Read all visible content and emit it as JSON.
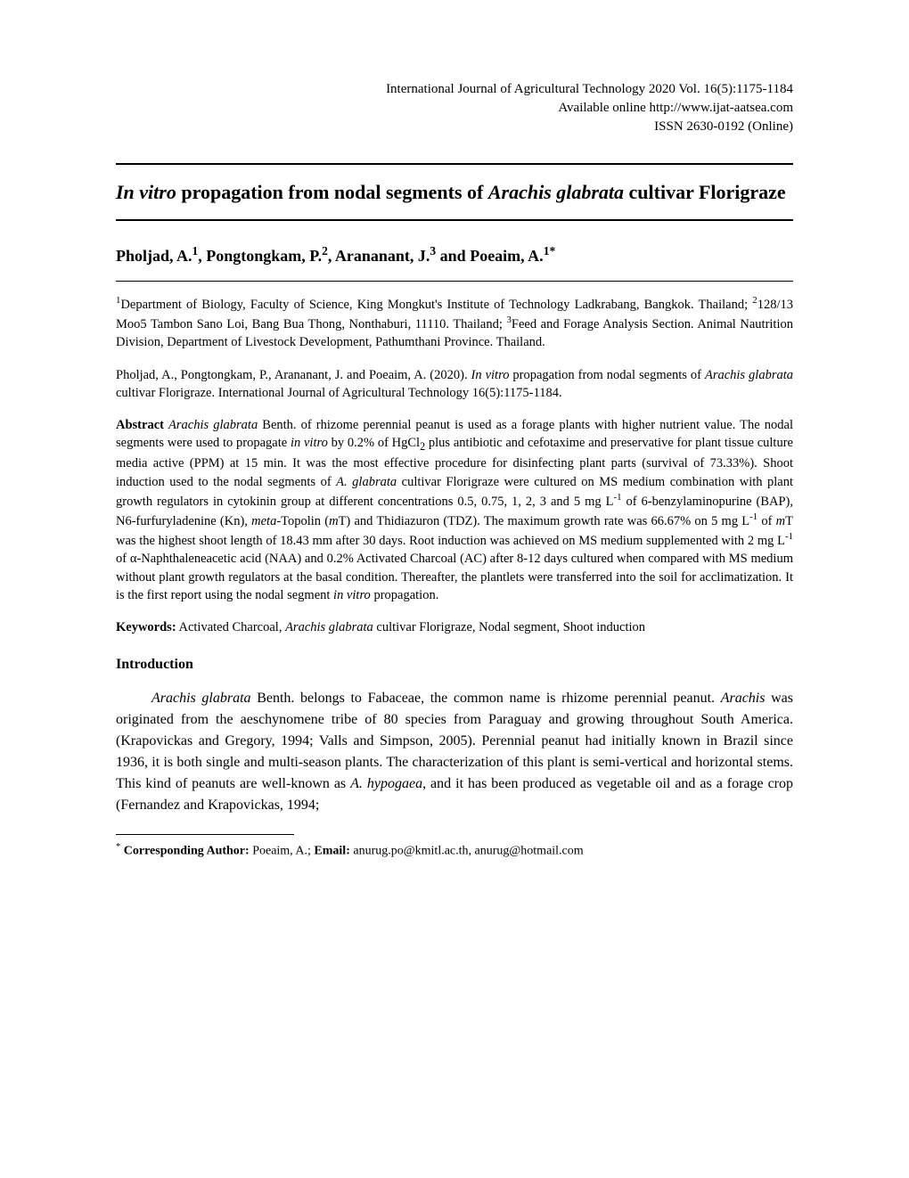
{
  "header": {
    "journal_line": "International Journal of Agricultural Technology 2020 Vol. 16(5):1175-1184",
    "url_line": "Available online http://www.ijat-aatsea.com",
    "issn_line": "ISSN 2630-0192 (Online)"
  },
  "title": {
    "italic_prefix": "In vitro",
    "mid": " propagation from nodal segments of ",
    "italic_species": "Arachis glabrata",
    "suffix": " cultivar Florigraze"
  },
  "authors": {
    "a1_name": "Pholjad, A.",
    "a1_sup": "1",
    "a2_name": ", Pongtongkam, P.",
    "a2_sup": "2",
    "a3_name": ", Arananant, J.",
    "a3_sup": "3",
    "a4_name": " and Poeaim, A.",
    "a4_sup": "1*"
  },
  "affiliations": {
    "sup1": "1",
    "aff1": "Department of Biology, Faculty of Science, King Mongkut's Institute of Technology Ladkrabang, Bangkok. Thailand; ",
    "sup2": "2",
    "aff2": "128/13 Moo5 Tambon Sano Loi, Bang Bua Thong, Nonthaburi, 11110. Thailand; ",
    "sup3": "3",
    "aff3": "Feed and Forage Analysis Section. Animal Nautrition Division, Department of Livestock Development, Pathumthani Province. Thailand."
  },
  "citation": {
    "authors": "Pholjad, A., Pongtongkam, P., Arananant, J. and Poeaim, A. (2020). ",
    "italic_invitro": "In vitro",
    "mid": " propagation from nodal segments of ",
    "italic_species": "Arachis glabrata",
    "tail": " cultivar Florigraze. International Journal of Agricultural Technology 16(5):1175-1184."
  },
  "abstract": {
    "label": "Abstract ",
    "species": "Arachis glabrata",
    "p1": " Benth. of rhizome perennial peanut is used as a forage plants with higher nutrient value. The nodal segments were used to propagate ",
    "invitro1": "in vitro",
    "p2": " by 0.2% of HgCl",
    "sub2": "2",
    "p3": " plus antibiotic and cefotaxime and preservative for plant tissue culture media active (PPM) at 15 min. It was the most effective procedure for disinfecting plant parts (survival of 73.33%). Shoot induction used to the nodal segments of ",
    "species2": "A. glabrata",
    "p4": " cultivar Florigraze were cultured on MS medium combination with plant growth regulators in cytokinin group at different concentrations 0.5, 0.75, 1, 2, 3 and 5 mg L",
    "supneg1a": "-1",
    "p5": " of 6-benzylaminopurine (BAP), N6-furfuryladenine (Kn), ",
    "meta": "meta",
    "p6": "-Topolin (",
    "mT1": "m",
    "p7": "T) and Thidiazuron (TDZ). The maximum growth rate was 66.67% on 5 mg L",
    "supneg1b": "-1",
    "p8": " of ",
    "mT2": "m",
    "p9": "T was the highest shoot length of 18.43 mm after 30 days. Root induction was achieved on MS medium supplemented with 2 mg L",
    "supneg1c": "-1",
    "p10": " of α-Naphthaleneacetic acid (NAA) and 0.2% Activated Charcoal (AC) after 8-12 days cultured when compared with MS medium without plant growth regulators at the basal condition. Thereafter, the plantlets were transferred into the soil for acclimatization. It is the first report using the nodal segment ",
    "invitro2": "in vitro",
    "p11": " propagation."
  },
  "keywords": {
    "label": "Keywords:",
    "pre": " Activated Charcoal, ",
    "species": "Arachis glabrata",
    "rest": " cultivar Florigraze, Nodal segment, Shoot induction"
  },
  "section_heading": "Introduction",
  "body": {
    "species1": "Arachis glabrata",
    "p1": " Benth. belongs to Fabaceae, the common name is rhizome perennial peanut. ",
    "genus": "Arachis",
    "p2": " was originated from the aeschynomene tribe of 80 species from Paraguay and growing throughout South America. (Krapovickas and Gregory, 1994; Valls and Simpson, 2005). Perennial peanut had initially known in Brazil since 1936, it is both single and multi-season plants. The characterization of this plant is semi-vertical and horizontal stems. This kind of peanuts are well-known as ",
    "species2": "A. hypogaea",
    "p3": ", and it has been produced as vegetable oil and as a forage crop (Fernandez and Krapovickas, 1994;"
  },
  "footnote": {
    "marker": "*",
    "label": " Corresponding Author:",
    "text": " Poeaim, A.; ",
    "email_label": "Email:",
    "emails": "  anurug.po@kmitl.ac.th, anurug@hotmail.com"
  }
}
